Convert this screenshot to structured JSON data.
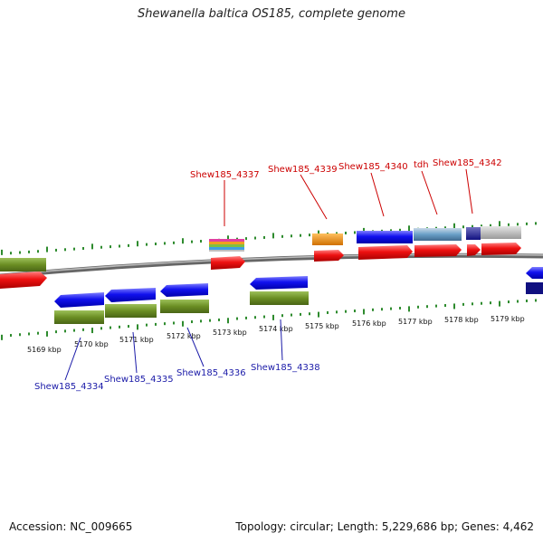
{
  "title": "Shewanella baltica OS185, complete genome",
  "footer": {
    "accession": "Accession: NC_009665",
    "summary": "Topology: circular; Length: 5,229,686 bp; Genes: 4,462"
  },
  "colors": {
    "forward_gene": "#ee1111",
    "reverse_gene": "#1111ee",
    "cds_green": "#6b8e23",
    "backbone": "#888888",
    "tick": "#2e8b2e",
    "label_forward": "#cc0000",
    "label_reverse": "#1a1aa8",
    "orange_feature": "#f0900a",
    "grey_feature": "#b8b8b8",
    "navy_feature": "#101080"
  },
  "scale": {
    "unit": "kbp",
    "ticks": [
      "5169 kbp",
      "5170 kbp",
      "5171 kbp",
      "5172 kbp",
      "5173 kbp",
      "5174 kbp",
      "5175 kbp",
      "5176 kbp",
      "5177 kbp",
      "5178 kbp",
      "5179 kbp"
    ]
  },
  "gene_labels_forward": [
    "Shew185_4337",
    "Shew185_4339",
    "Shew185_4340",
    "tdh",
    "Shew185_4342"
  ],
  "gene_labels_reverse": [
    "Shew185_4334",
    "Shew185_4335",
    "Shew185_4336",
    "Shew185_4338"
  ]
}
